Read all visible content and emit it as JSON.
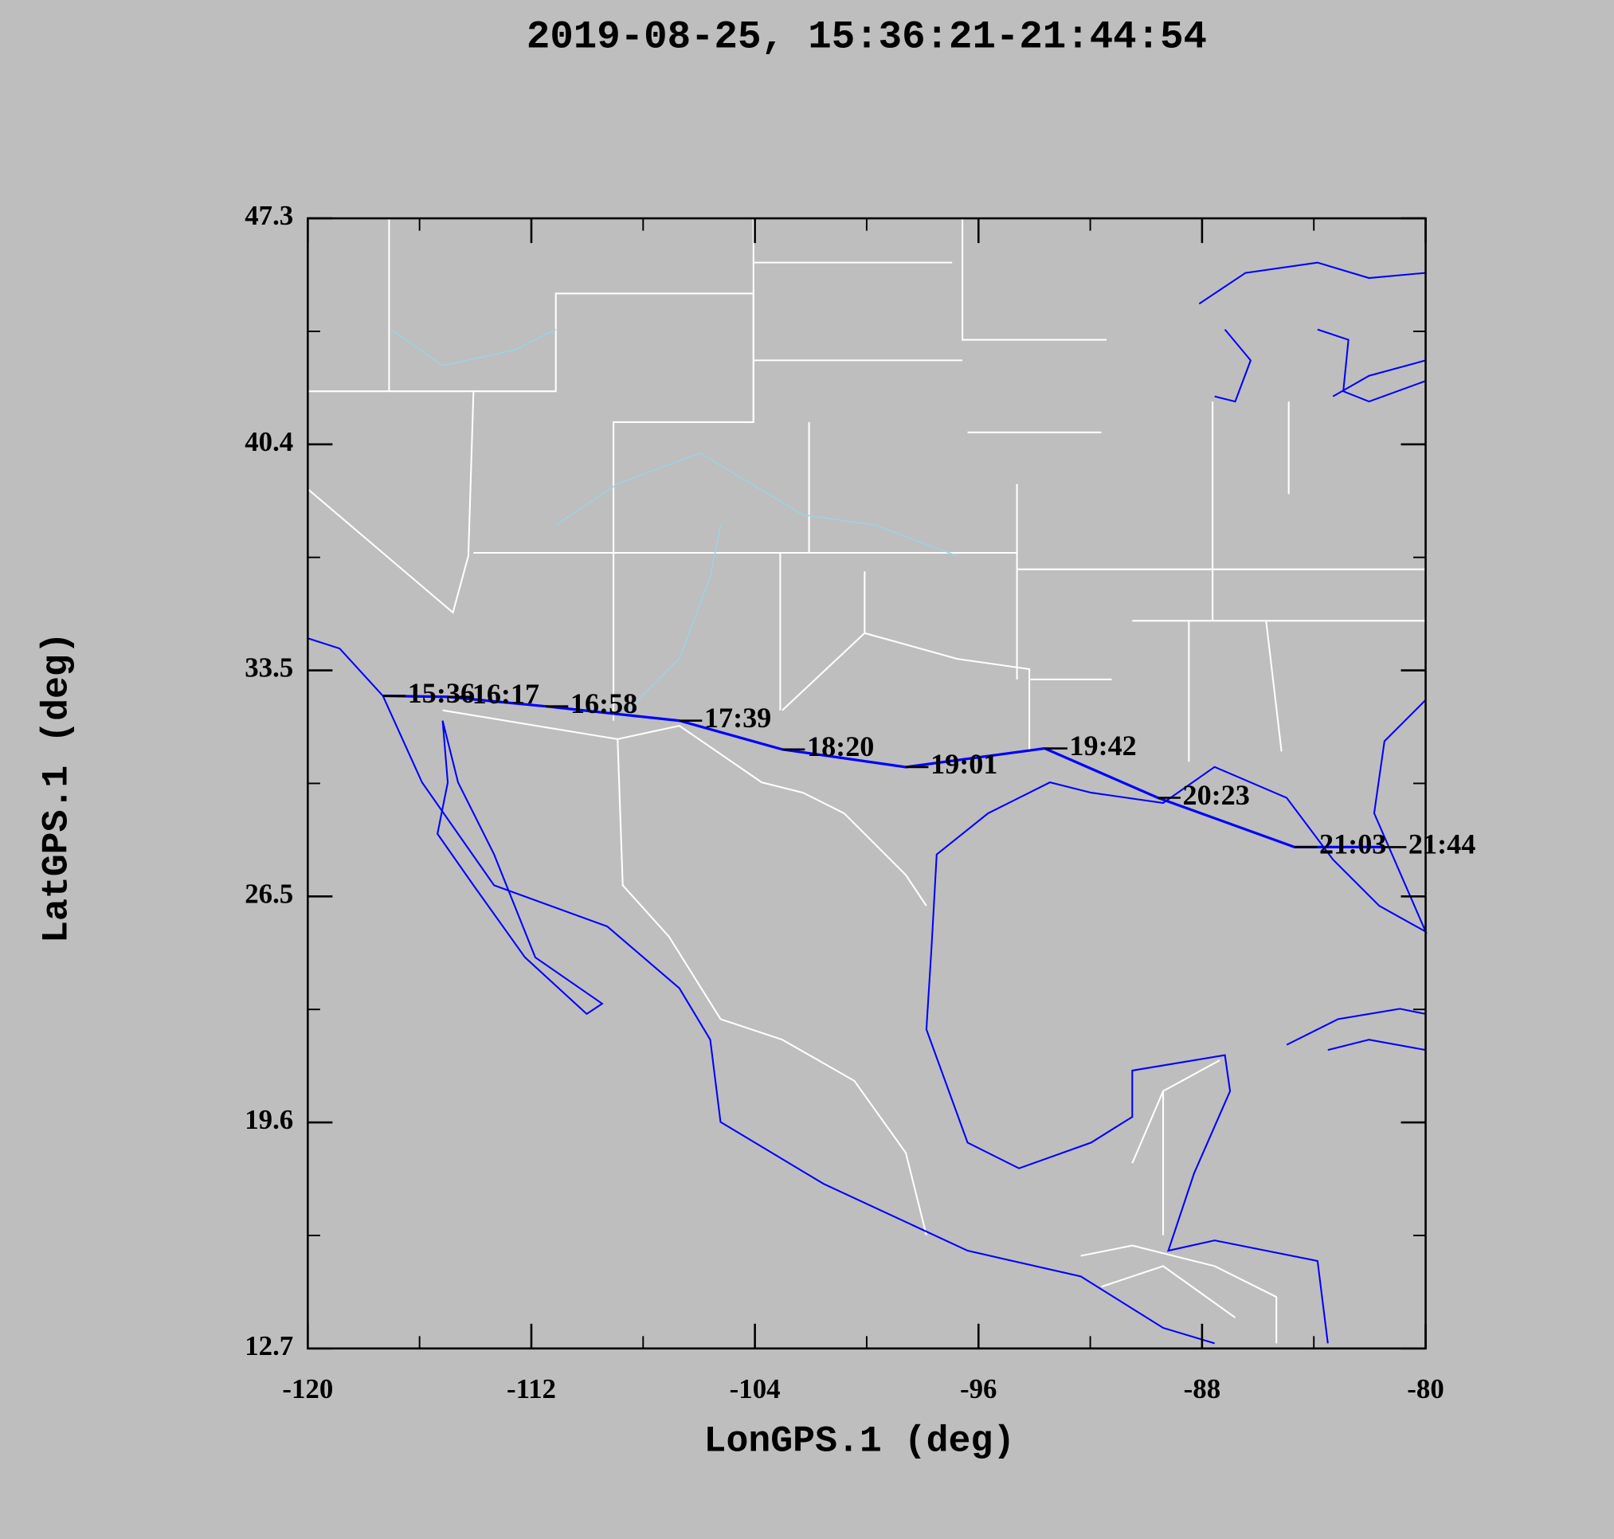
{
  "chart_data": {
    "type": "line",
    "title": "2019-08-25, 15:36:21-21:44:54",
    "x_label": "LonGPS.1 (deg)",
    "y_label": "LatGPS.1 (deg)",
    "x": [
      -117.31,
      -115.0,
      -111.49,
      -106.7,
      -103.02,
      -98.6,
      -93.63,
      -89.58,
      -84.69,
      -81.5
    ],
    "series": [
      {
        "color": "#0000ff",
        "values": [
          32.68,
          32.65,
          32.36,
          31.92,
          31.04,
          30.5,
          31.07,
          29.56,
          28.05,
          28.05
        ],
        "point_labels": [
          "15:36",
          "16:17",
          "16:58",
          "17:39",
          "18:20",
          "19:01",
          "19:42",
          "20:23",
          "21:03",
          "21:44"
        ]
      }
    ],
    "xlim": [
      -120,
      -80
    ],
    "ylim": [
      12.7,
      47.3
    ],
    "xticks": [
      -120,
      -112,
      -104,
      -96,
      -88,
      -80
    ],
    "yticks": [
      47.3,
      {
        "value": 40.38,
        "label": "40.4"
      },
      {
        "value": 33.46,
        "label": "33.5"
      },
      {
        "value": 26.54,
        "label": "26.5"
      },
      {
        "value": 19.62,
        "label": "19.6"
      },
      12.7
    ],
    "xminorticks": [
      -116,
      -108,
      -100,
      -92,
      -84
    ],
    "yminorticks": [
      43.84,
      36.92,
      30.0,
      23.08,
      16.16
    ]
  }
}
